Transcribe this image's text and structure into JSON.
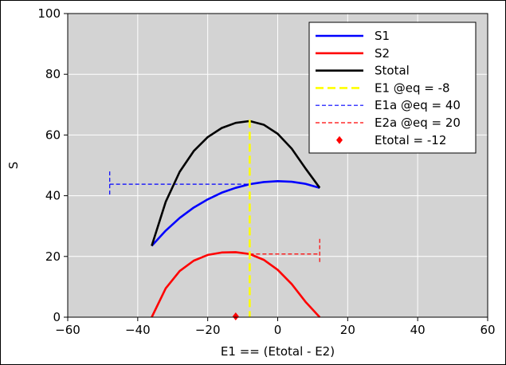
{
  "chart_data": {
    "type": "line",
    "title": "",
    "xlabel": "E1 == (Etotal - E2)",
    "ylabel": "S",
    "xlim": [
      -60,
      60
    ],
    "ylim": [
      0,
      100
    ],
    "x_ticks": [
      "−60",
      "−40",
      "−20",
      "0",
      "20",
      "40",
      "60"
    ],
    "y_ticks": [
      "0",
      "20",
      "40",
      "60",
      "80",
      "100"
    ],
    "grid": true,
    "background": "#d3d3d3",
    "legend_position": "top-right",
    "series": [
      {
        "name": "S1",
        "color": "#0000ff",
        "x": [
          -36,
          -32,
          -28,
          -24,
          -20,
          -16,
          -12,
          -8,
          -4,
          0,
          4,
          8,
          12
        ],
        "y": [
          23.5,
          28.5,
          32.7,
          36.1,
          38.8,
          41.0,
          42.6,
          43.8,
          44.5,
          44.8,
          44.6,
          43.9,
          42.6
        ]
      },
      {
        "name": "S2",
        "color": "#ff0000",
        "x": [
          -36,
          -32,
          -28,
          -24,
          -20,
          -16,
          -12,
          -8,
          -4,
          0,
          4,
          8,
          12
        ],
        "y": [
          0,
          9.5,
          15.2,
          18.6,
          20.5,
          21.3,
          21.4,
          20.8,
          18.9,
          15.6,
          10.9,
          5.0,
          0
        ]
      },
      {
        "name": "Stotal",
        "color": "#000000",
        "x": [
          -36,
          -32,
          -28,
          -24,
          -20,
          -16,
          -12,
          -8,
          -4,
          0,
          4,
          8,
          12
        ],
        "y": [
          23.5,
          38.0,
          47.9,
          54.7,
          59.3,
          62.3,
          64.0,
          64.6,
          63.4,
          60.4,
          55.5,
          48.9,
          42.6
        ]
      }
    ],
    "vline": {
      "name": "E1 @eq = -8",
      "x": -8,
      "color": "#ffff00"
    },
    "hbar_e1a": {
      "name": "E1a @eq = 40",
      "x_from": -48,
      "x_to": -8,
      "y": 43.8,
      "color": "#0000ff"
    },
    "hbar_e2a": {
      "name": "E2a @eq = 20",
      "x_from": -8,
      "x_to": 12,
      "y": 20.8,
      "color": "#ff0000"
    },
    "marker": {
      "name": "Etotal = -12",
      "x": -12,
      "y": 0,
      "color": "#ff0000"
    }
  }
}
